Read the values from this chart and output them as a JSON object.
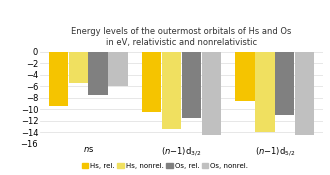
{
  "title": "Energy levels of the outermost orbitals of Hs and Os\nin eV, relativistic and nonrelativistic",
  "category_labels": [
    "$\\mathit{n}$s",
    "$(\\mathit{n}{-}1)$d$_{3/2}$",
    "$(\\mathit{n}{-}1)$d$_{5/2}$"
  ],
  "series": {
    "Hs, rel.": [
      -9.5,
      -10.5,
      -8.5
    ],
    "Hs, nonrel.": [
      -5.5,
      -13.5,
      -14.0
    ],
    "Os, rel.": [
      -7.5,
      -11.5,
      -11.0
    ],
    "Os, nonrel.": [
      -6.0,
      -14.5,
      -14.5
    ]
  },
  "colors": {
    "Hs, rel.": "#F5C400",
    "Hs, nonrel.": "#F0E060",
    "Os, rel.": "#808080",
    "Os, nonrel.": "#C0C0C0"
  },
  "ylim": [
    -16,
    0.5
  ],
  "yticks": [
    0,
    -2,
    -4,
    -6,
    -8,
    -10,
    -12,
    -14,
    -16
  ],
  "background_color": "#FFFFFF",
  "grid_color": "#DDDDDD",
  "title_fontsize": 6.0,
  "tick_fontsize": 6.0,
  "legend_fontsize": 5.0
}
